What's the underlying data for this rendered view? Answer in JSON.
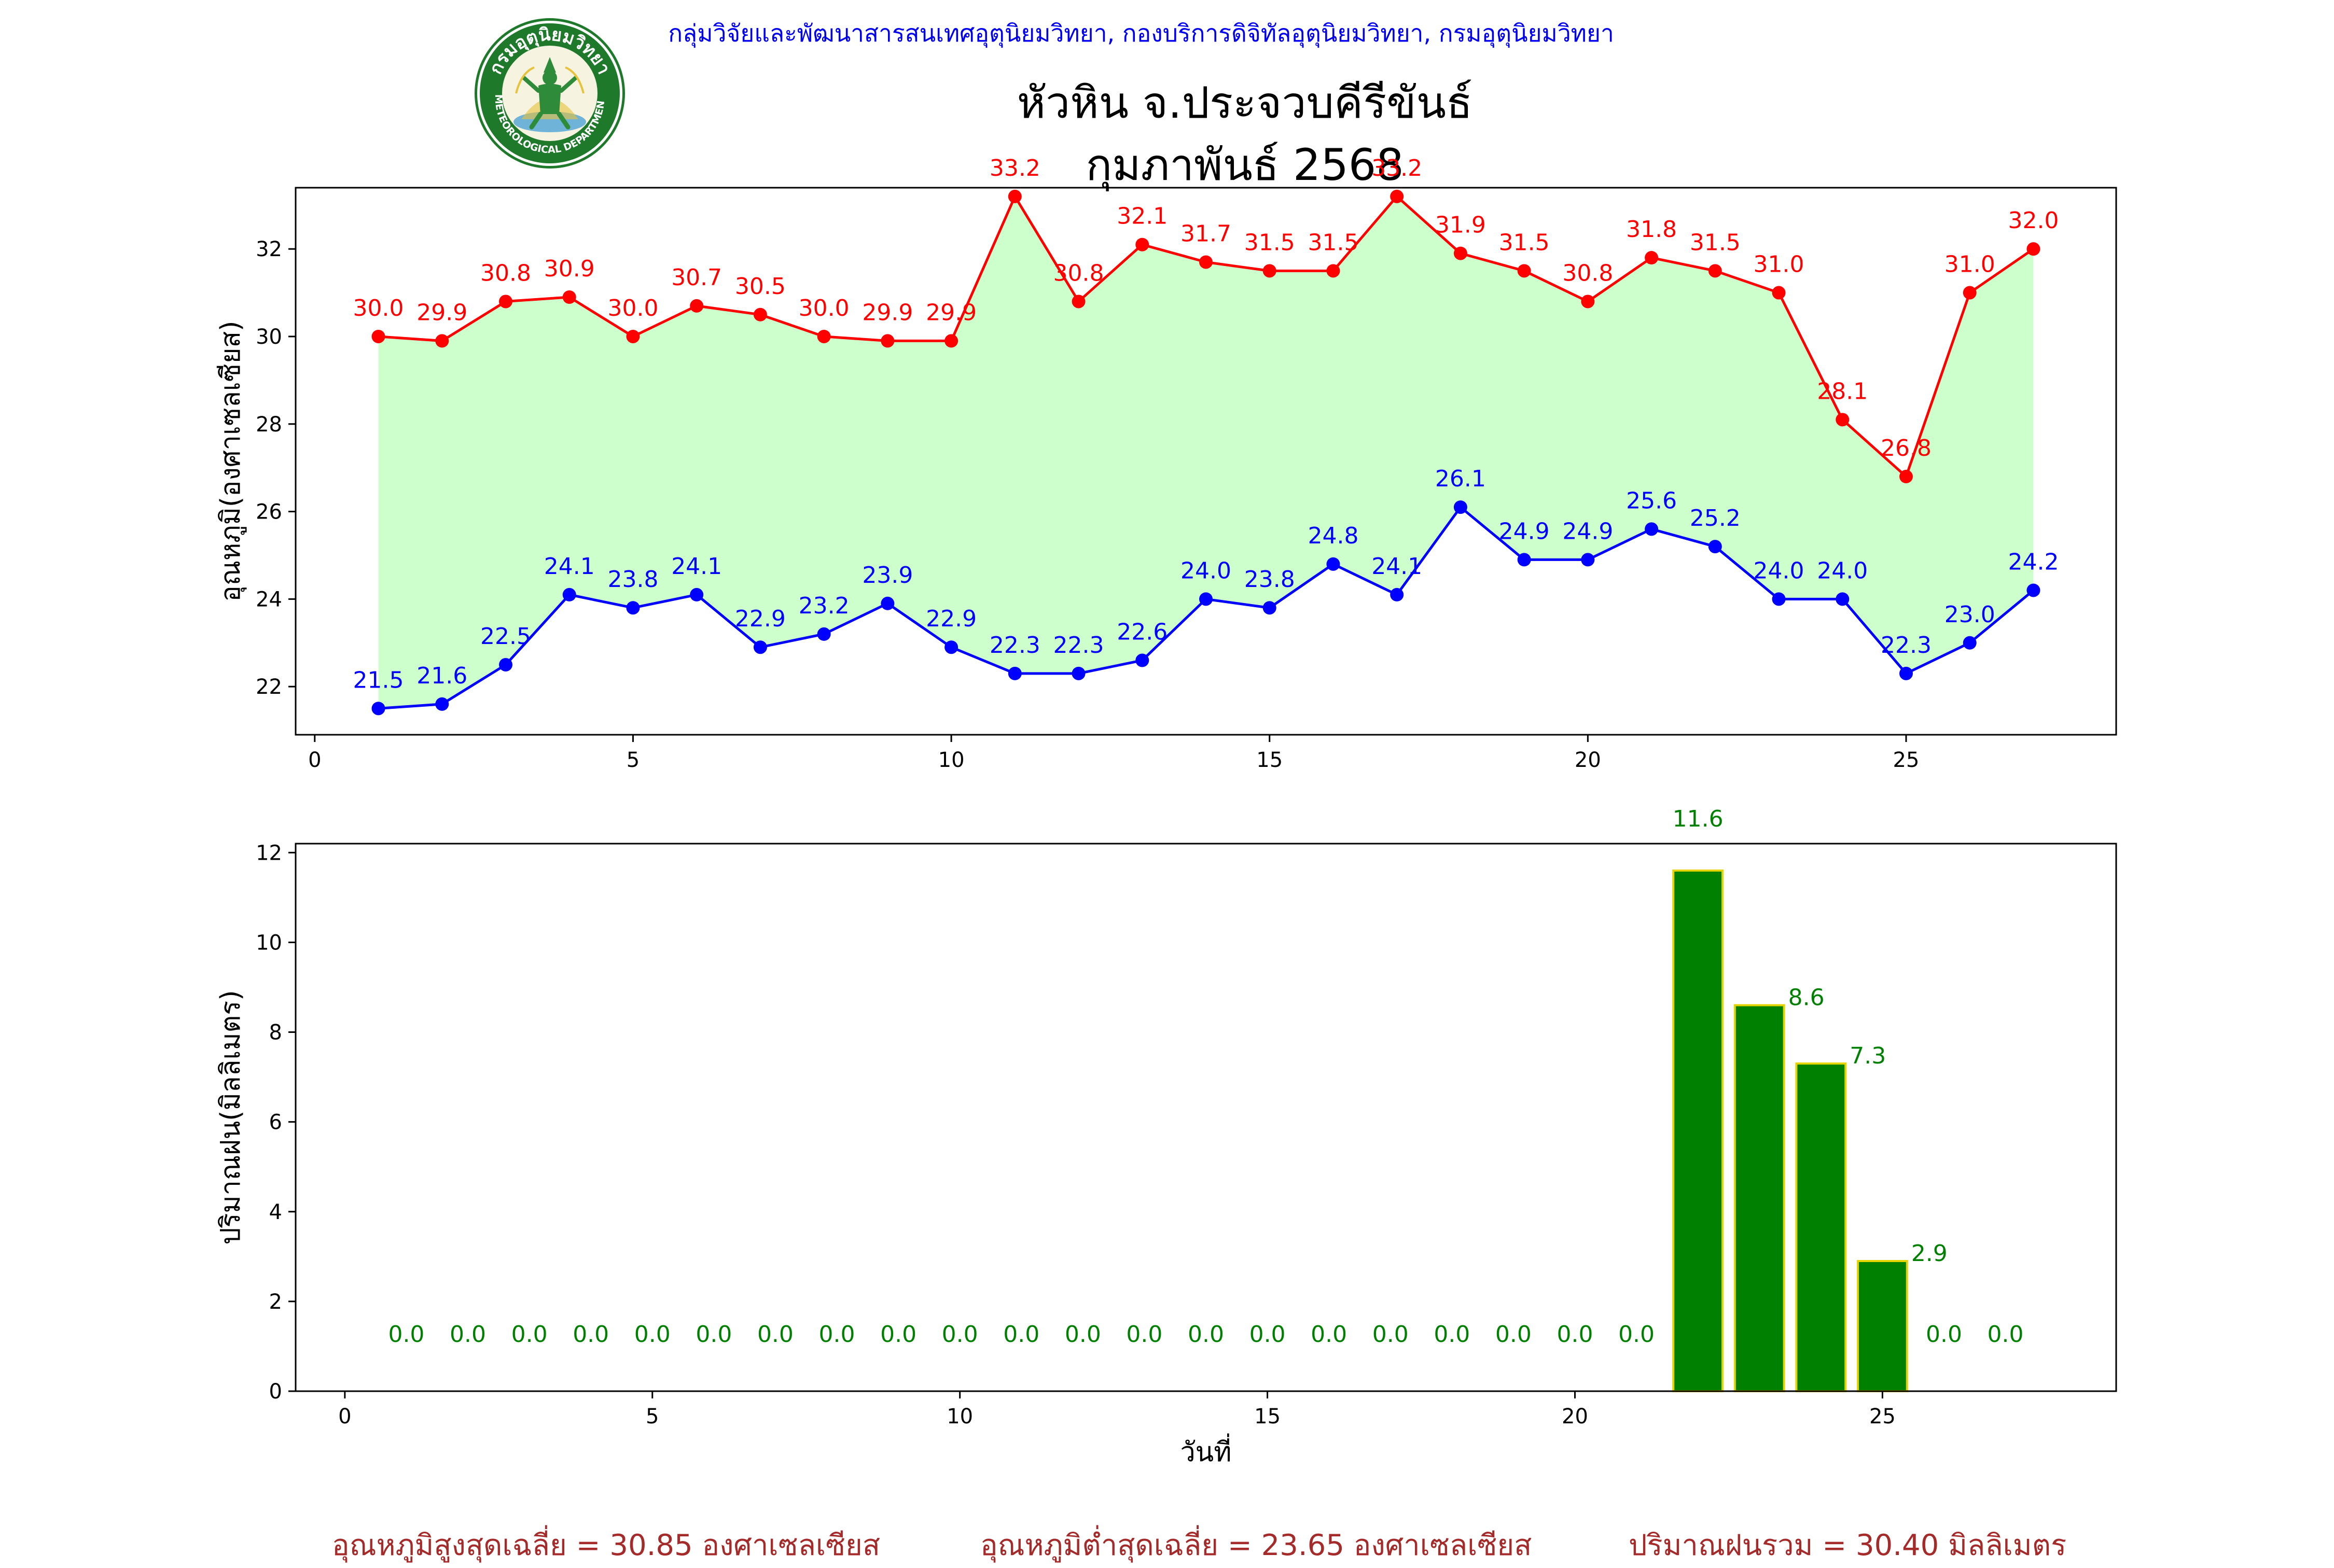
{
  "header": {
    "department": "กลุ่มวิจัยและพัฒนาสารสนเทศอุตุนิยมวิทยา, กองบริการดิจิทัลอุตุนิยมวิทยา, กรมอุตุนิยมวิทยา",
    "station": "หัวหิน จ.ประจวบคีรีขันธ์",
    "month": "กุมภาพันธ์ 2568",
    "logo_text_top": "กรมอุตุนิยมวิทยา",
    "logo_text_bottom": "METEOROLOGICAL DEPARTMENT"
  },
  "footer": {
    "avg_max": "อุณหภูมิสูงสุดเฉลี่ย = 30.85 องศาเซลเซียส",
    "avg_min": "อุณหภูมิต่ำสุดเฉลี่ย = 23.65 องศาเซลเซียส",
    "total_rain": "ปริมาณฝนรวม = 30.40 มิลลิเมตร"
  },
  "colors": {
    "max_line": "#ff0000",
    "min_line": "#0000ff",
    "fill": "#ccffcc",
    "bar": "#008000",
    "bar_edge": "#e5d400",
    "rain_label": "#008000"
  },
  "chart_data": [
    {
      "type": "line",
      "ylabel": "อุณหภูมิ(องศาเซลเซียส)",
      "xlabel": "",
      "xlim": [
        -0.3,
        28.3
      ],
      "ylim": [
        20.9,
        33.4
      ],
      "xticks": [
        0,
        5,
        10,
        15,
        20,
        25
      ],
      "yticks": [
        22,
        24,
        26,
        28,
        30,
        32
      ],
      "x": [
        1,
        2,
        3,
        4,
        5,
        6,
        7,
        8,
        9,
        10,
        11,
        12,
        13,
        14,
        15,
        16,
        17,
        18,
        19,
        20,
        21,
        22,
        23,
        24,
        25,
        26,
        27
      ],
      "series": [
        {
          "values": [
            30.0,
            29.9,
            30.8,
            30.9,
            30.0,
            30.7,
            30.5,
            30.0,
            29.9,
            29.9,
            33.2,
            30.8,
            32.1,
            31.7,
            31.5,
            31.5,
            33.2,
            31.9,
            31.5,
            30.8,
            31.8,
            31.5,
            31.0,
            28.1,
            26.8,
            31.0,
            32.0
          ]
        },
        {
          "values": [
            21.5,
            21.6,
            22.5,
            24.1,
            23.8,
            24.1,
            22.9,
            23.2,
            23.9,
            22.9,
            22.3,
            22.3,
            22.6,
            24.0,
            23.8,
            24.8,
            24.1,
            26.1,
            24.9,
            24.9,
            25.6,
            25.2,
            24.0,
            24.0,
            22.3,
            23.0,
            24.2
          ]
        }
      ],
      "fill_between": true,
      "data_labels": true
    },
    {
      "type": "bar",
      "ylabel": "ปริมาณฝน(มิลลิเมตร)",
      "xlabel": "วันที่",
      "xlim": [
        -0.8,
        28.8
      ],
      "ylim": [
        0,
        12.2
      ],
      "xticks": [
        0,
        5,
        10,
        15,
        20,
        25
      ],
      "yticks": [
        0,
        2,
        4,
        6,
        8,
        10,
        12
      ],
      "x": [
        1,
        2,
        3,
        4,
        5,
        6,
        7,
        8,
        9,
        10,
        11,
        12,
        13,
        14,
        15,
        16,
        17,
        18,
        19,
        20,
        21,
        22,
        23,
        24,
        25,
        26,
        27
      ],
      "values": [
        0.0,
        0.0,
        0.0,
        0.0,
        0.0,
        0.0,
        0.0,
        0.0,
        0.0,
        0.0,
        0.0,
        0.0,
        0.0,
        0.0,
        0.0,
        0.0,
        0.0,
        0.0,
        0.0,
        0.0,
        0.0,
        11.6,
        8.6,
        7.3,
        2.9,
        0.0,
        0.0
      ],
      "data_labels": true
    }
  ]
}
